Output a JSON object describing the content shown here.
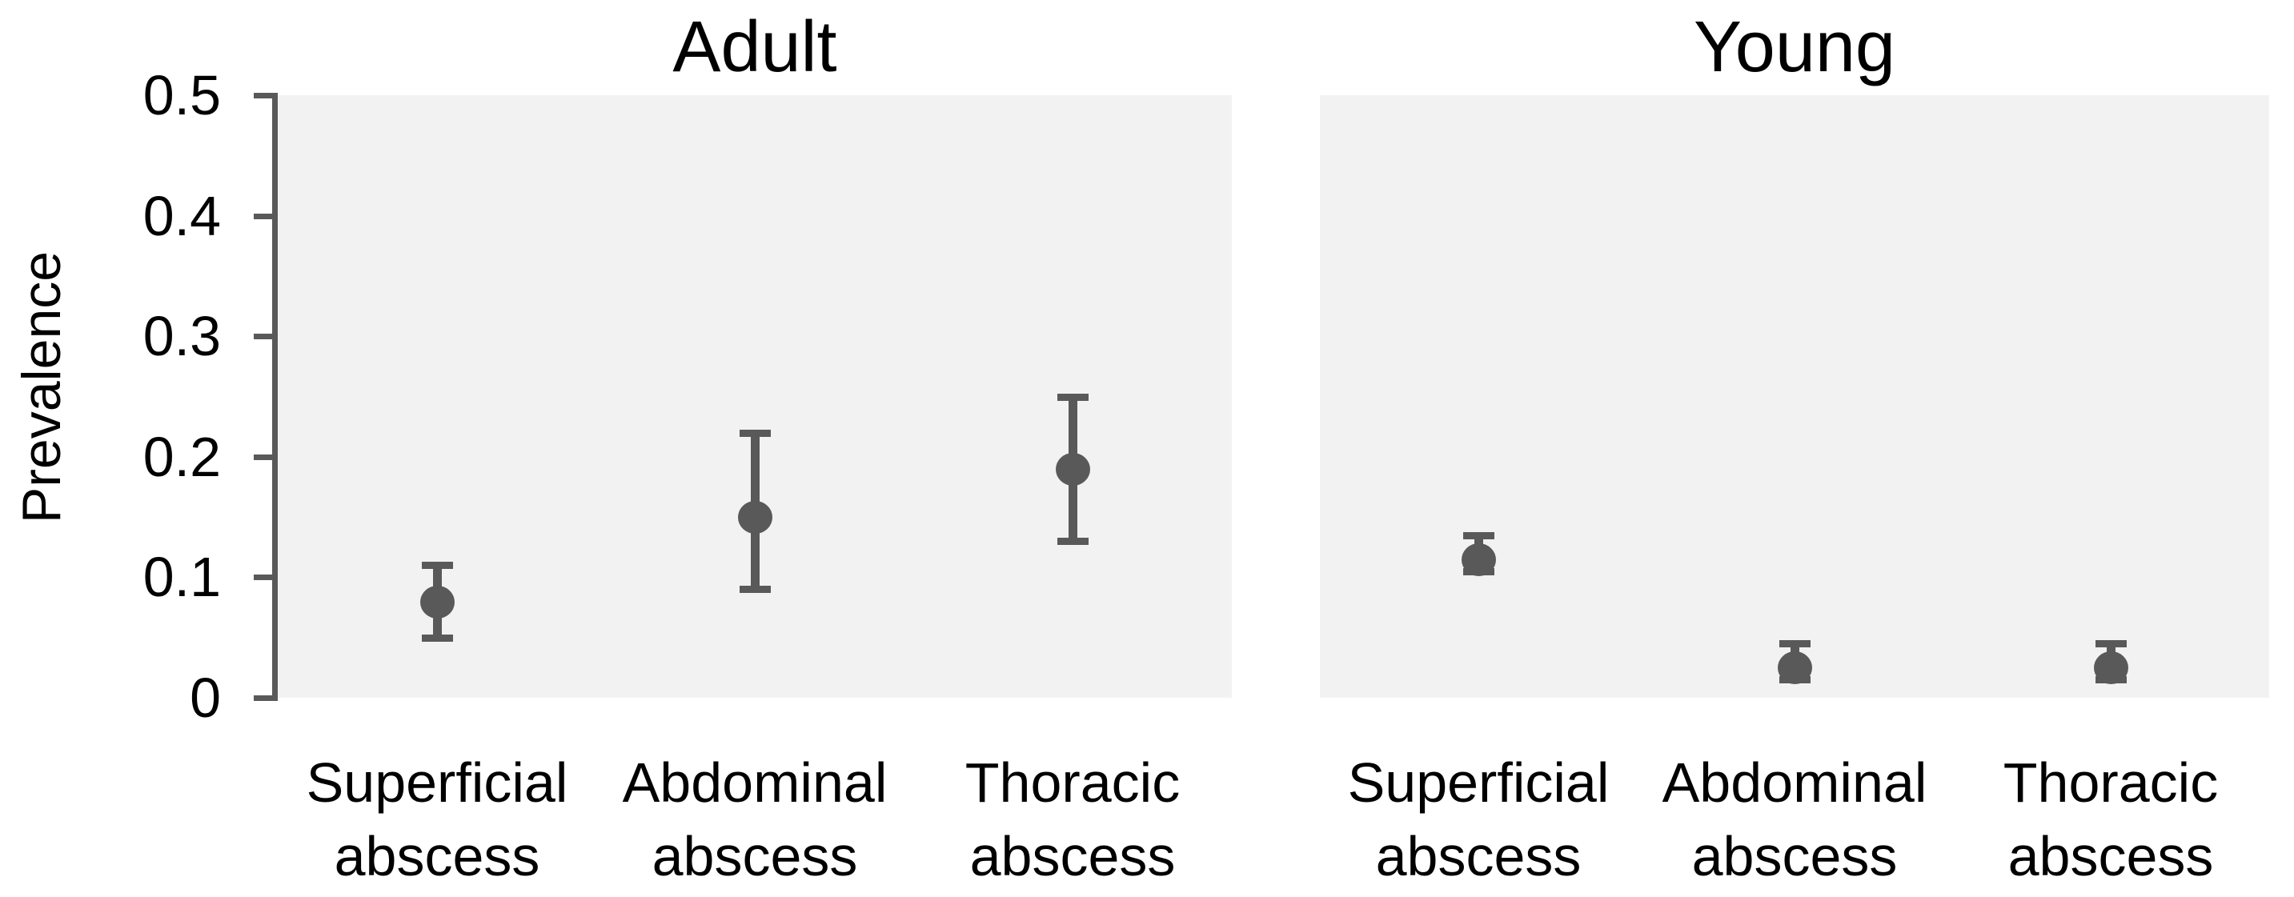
{
  "figure": {
    "background_color": "#ffffff",
    "plot_background_color": "#f2f2f2",
    "marker_color": "#595959",
    "axis_color": "#595959",
    "text_color": "#000000"
  },
  "chart_data": {
    "type": "scatter",
    "ylabel": "Prevalence",
    "ylim": [
      0,
      0.5
    ],
    "yticks": [
      0.5,
      0.4,
      0.3,
      0.2,
      0.1,
      0
    ],
    "ytick_labels": [
      "0.5",
      "0.4",
      "0.3",
      "0.2",
      "0.1",
      "0"
    ],
    "grid": false,
    "error_bars": true,
    "legend": "none",
    "panels": [
      {
        "title": "Adult",
        "categories": [
          "Superficial abscess",
          "Abdominal abscess",
          "Thoracic abscess"
        ],
        "category_lines": [
          [
            "Superficial",
            "abscess"
          ],
          [
            "Abdominal",
            "abscess"
          ],
          [
            "Thoracic",
            "abscess"
          ]
        ],
        "series": [
          {
            "name": "Prevalence",
            "values": [
              0.08,
              0.15,
              0.19
            ],
            "ci_low": [
              0.05,
              0.09,
              0.13
            ],
            "ci_high": [
              0.11,
              0.22,
              0.25
            ]
          }
        ]
      },
      {
        "title": "Young",
        "categories": [
          "Superficial abscess",
          "Abdominal abscess",
          "Thoracic abscess"
        ],
        "category_lines": [
          [
            "Superficial",
            "abscess"
          ],
          [
            "Abdominal",
            "abscess"
          ],
          [
            "Thoracic",
            "abscess"
          ]
        ],
        "series": [
          {
            "name": "Prevalence",
            "values": [
              0.115,
              0.025,
              0.025
            ],
            "ci_low": [
              0.105,
              0.015,
              0.015
            ],
            "ci_high": [
              0.135,
              0.045,
              0.045
            ]
          }
        ]
      }
    ]
  }
}
